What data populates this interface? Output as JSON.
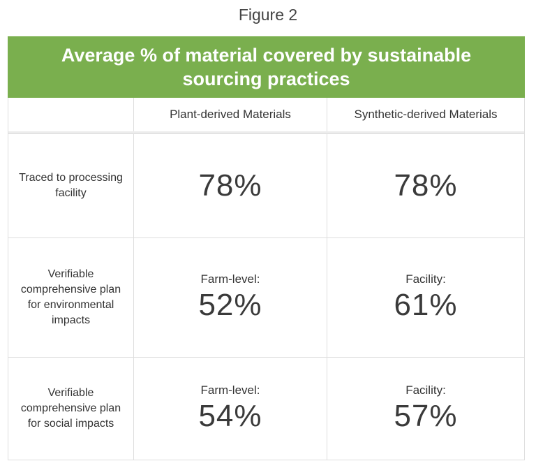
{
  "figure_label": "Figure 2",
  "title": "Average % of material covered by sustainable sourcing practices",
  "columns": [
    "",
    "Plant-derived Materials",
    "Synthetic-derived Materials"
  ],
  "rows": [
    {
      "label": "Traced to processing facility",
      "plant": {
        "sublabel": "",
        "value": "78%"
      },
      "synthetic": {
        "sublabel": "",
        "value": "78%"
      }
    },
    {
      "label": "Verifiable comprehensive plan for environmental impacts",
      "plant": {
        "sublabel": "Farm-level:",
        "value": "52%"
      },
      "synthetic": {
        "sublabel": "Facility:",
        "value": "61%"
      }
    },
    {
      "label": "Verifiable comprehensive plan for social impacts",
      "plant": {
        "sublabel": "Farm-level:",
        "value": "54%"
      },
      "synthetic": {
        "sublabel": "Facility:",
        "value": "57%"
      }
    }
  ],
  "colors": {
    "header_background": "#7aaf4e",
    "header_text": "#ffffff",
    "grid_lines": "#dedede"
  }
}
